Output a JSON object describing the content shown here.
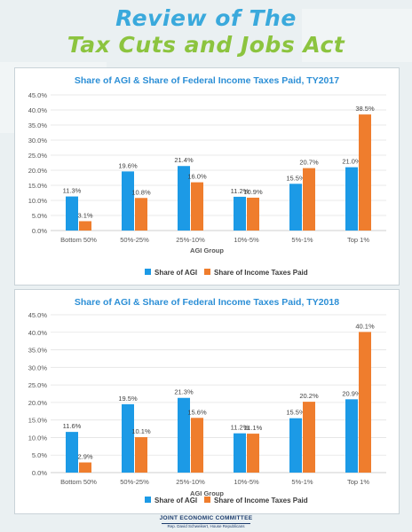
{
  "headline": {
    "line1": "Review of The",
    "line2": "Tax Cuts and Jobs Act"
  },
  "colors": {
    "headline_blue": "#3aa9dc",
    "headline_green": "#8cc43f",
    "series_agi": "#1c9ae6",
    "series_taxes": "#ef7d2d",
    "chart_title": "#2c8fd6"
  },
  "chart_data": [
    {
      "type": "bar",
      "title": "Share of AGI & Share of Federal Income Taxes Paid, TY2017",
      "xlabel": "AGI Group",
      "ylabel": "",
      "ylim": [
        0,
        45
      ],
      "yticks": [
        "0.0%",
        "5.0%",
        "10.0%",
        "15.0%",
        "20.0%",
        "25.0%",
        "30.0%",
        "35.0%",
        "40.0%",
        "45.0%"
      ],
      "grid": true,
      "legend": "bottom",
      "categories": [
        "Bottom 50%",
        "50%-25%",
        "25%-10%",
        "10%-5%",
        "5%-1%",
        "Top 1%"
      ],
      "series": [
        {
          "name": "Share of AGI",
          "values": [
            11.3,
            19.6,
            21.4,
            11.2,
            15.5,
            21.0
          ],
          "labels": [
            "11.3%",
            "19.6%",
            "21.4%",
            "11.2%",
            "15.5%",
            "21.0%"
          ]
        },
        {
          "name": "Share of Income Taxes Paid",
          "values": [
            3.1,
            10.8,
            16.0,
            10.9,
            20.7,
            38.5
          ],
          "labels": [
            "3.1%",
            "10.8%",
            "16.0%",
            "10.9%",
            "20.7%",
            "38.5%"
          ]
        }
      ]
    },
    {
      "type": "bar",
      "title": "Share of AGI & Share of Federal Income Taxes Paid, TY2018",
      "xlabel": "AGI Group",
      "ylabel": "",
      "ylim": [
        0,
        45
      ],
      "yticks": [
        "0.0%",
        "5.0%",
        "10.0%",
        "15.0%",
        "20.0%",
        "25.0%",
        "30.0%",
        "35.0%",
        "40.0%",
        "45.0%"
      ],
      "grid": true,
      "legend": "bottom",
      "categories": [
        "Bottom 50%",
        "50%-25%",
        "25%-10%",
        "10%-5%",
        "5%-1%",
        "Top 1%"
      ],
      "series": [
        {
          "name": "Share of AGI",
          "values": [
            11.6,
            19.5,
            21.3,
            11.2,
            15.5,
            20.9
          ],
          "labels": [
            "11.6%",
            "19.5%",
            "21.3%",
            "11.2%",
            "15.5%",
            "20.9%"
          ]
        },
        {
          "name": "Share of Income Taxes Paid",
          "values": [
            2.9,
            10.1,
            15.6,
            11.1,
            20.2,
            40.1
          ],
          "labels": [
            "2.9%",
            "10.1%",
            "15.6%",
            "11.1%",
            "20.2%",
            "40.1%"
          ]
        }
      ]
    }
  ],
  "footer": {
    "org": "JOINT ECONOMIC COMMITTEE",
    "sub": "Rep. David Schweikert, House Republicans"
  }
}
